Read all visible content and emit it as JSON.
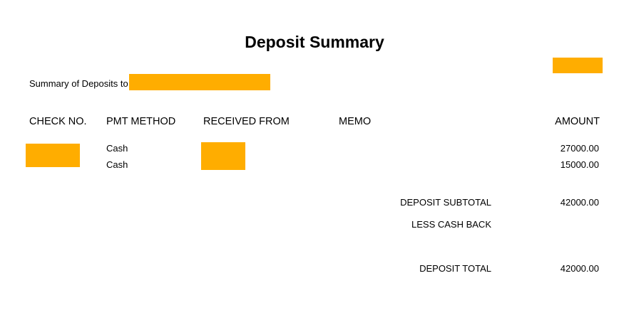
{
  "title": "Deposit Summary",
  "summary_label": "Summary of Deposits to",
  "columns": {
    "check_no": "CHECK NO.",
    "pmt_method": "PMT METHOD",
    "received_from": "RECEIVED FROM",
    "memo": "MEMO",
    "amount": "AMOUNT"
  },
  "rows": [
    {
      "check_no": "",
      "pmt_method": "Cash",
      "received_from": "",
      "memo": "",
      "amount": "27000.00"
    },
    {
      "check_no": "",
      "pmt_method": "Cash",
      "received_from": "",
      "memo": "",
      "amount": "15000.00"
    }
  ],
  "totals": {
    "subtotal_label": "DEPOSIT SUBTOTAL",
    "subtotal_value": "42000.00",
    "cash_back_label": "LESS CASH BACK",
    "cash_back_value": "",
    "total_label": "DEPOSIT TOTAL",
    "total_value": "42000.00"
  },
  "colors": {
    "redaction": "#ffad00"
  }
}
